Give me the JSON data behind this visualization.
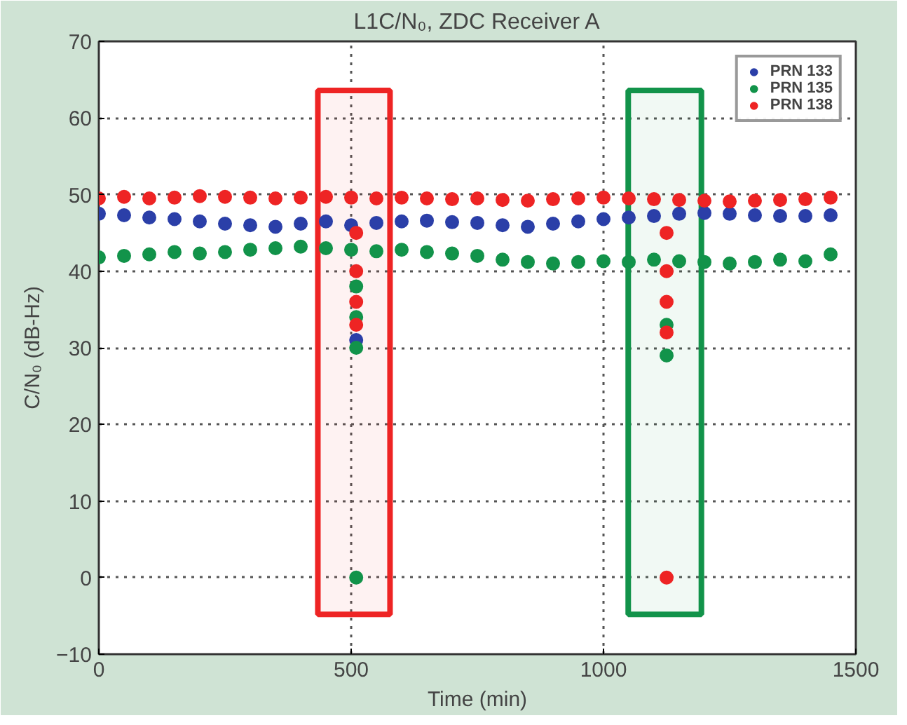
{
  "chart_data": {
    "type": "scatter",
    "title": "L1C/N₀, ZDC Receiver A",
    "xlabel": "Time (min)",
    "ylabel": "C/N₀ (dB-Hz)",
    "xlim": [
      0,
      1500
    ],
    "xticks": [
      0,
      500,
      1000,
      1500
    ],
    "ylim": [
      -10,
      70
    ],
    "yticks": [
      -10,
      0,
      10,
      20,
      30,
      40,
      50,
      60,
      70
    ],
    "grid": true,
    "legend": "top right",
    "marker": "circle",
    "series": [
      {
        "name": "PRN 133",
        "color": "#2b3fa8",
        "x": [
          0,
          50,
          100,
          150,
          200,
          250,
          300,
          350,
          400,
          450,
          500,
          550,
          600,
          650,
          700,
          750,
          800,
          850,
          900,
          950,
          1000,
          1050,
          1100,
          1150,
          1200,
          1250,
          1300,
          1350,
          1400,
          1450,
          510
        ],
        "values": [
          47.5,
          47.3,
          47,
          46.8,
          46.5,
          46.2,
          46,
          45.8,
          46.2,
          46.5,
          46,
          46.3,
          46.5,
          46.6,
          46.4,
          46.3,
          46,
          45.8,
          46.2,
          46.5,
          46.8,
          47,
          47.2,
          47.5,
          47.6,
          47.5,
          47.3,
          47.2,
          47.2,
          47.3,
          31
        ]
      },
      {
        "name": "PRN 135",
        "color": "#12934a",
        "x": [
          0,
          50,
          100,
          150,
          200,
          250,
          300,
          350,
          400,
          450,
          500,
          550,
          600,
          650,
          700,
          750,
          800,
          850,
          900,
          950,
          1000,
          1050,
          1100,
          1150,
          1200,
          1250,
          1300,
          1350,
          1400,
          1450,
          510,
          510,
          510,
          510,
          1125,
          1125
        ],
        "values": [
          41.8,
          42,
          42.2,
          42.5,
          42.3,
          42.5,
          42.8,
          43,
          43.2,
          43,
          42.8,
          42.6,
          42.8,
          42.5,
          42.3,
          42,
          41.5,
          41.2,
          41,
          41.2,
          41.3,
          41.2,
          41.5,
          41.3,
          41.2,
          41,
          41.2,
          41.5,
          41.3,
          42.2,
          38,
          34,
          30,
          0,
          33,
          29
        ]
      },
      {
        "name": "PRN 138",
        "color": "#ee2424",
        "x": [
          0,
          50,
          100,
          150,
          200,
          250,
          300,
          350,
          400,
          450,
          500,
          550,
          600,
          650,
          700,
          750,
          800,
          850,
          900,
          950,
          1000,
          1050,
          1100,
          1150,
          1200,
          1250,
          1300,
          1350,
          1400,
          1450,
          510,
          510,
          510,
          510,
          1125,
          1125,
          1125,
          1125,
          1125
        ],
        "values": [
          49.5,
          49.7,
          49.5,
          49.6,
          49.8,
          49.7,
          49.6,
          49.5,
          49.6,
          49.7,
          49.6,
          49.5,
          49.6,
          49.5,
          49.4,
          49.5,
          49.3,
          49.2,
          49.4,
          49.5,
          49.6,
          49.5,
          49.4,
          49.3,
          49.2,
          49.1,
          49.2,
          49.3,
          49.4,
          49.6,
          45,
          40,
          36,
          33,
          45,
          40,
          36,
          32,
          0
        ]
      }
    ],
    "bands": [
      {
        "axis": "x",
        "from": 434,
        "to": 577,
        "color": "#ee2424"
      },
      {
        "axis": "x",
        "from": 1049,
        "to": 1194,
        "color": "#12934a"
      }
    ]
  }
}
